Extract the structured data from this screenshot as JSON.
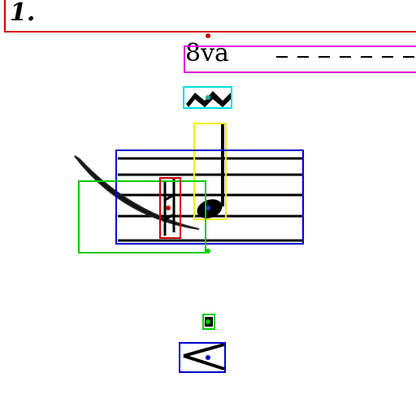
{
  "score": {
    "measure_number": "1.",
    "ottava": "8va"
  },
  "colors": {
    "red": "#d00000",
    "magenta": "#e000e0",
    "cyan": "#00e0e0",
    "yellow": "#f0f000",
    "blue": "#0000cc",
    "green": "#00cc00"
  }
}
